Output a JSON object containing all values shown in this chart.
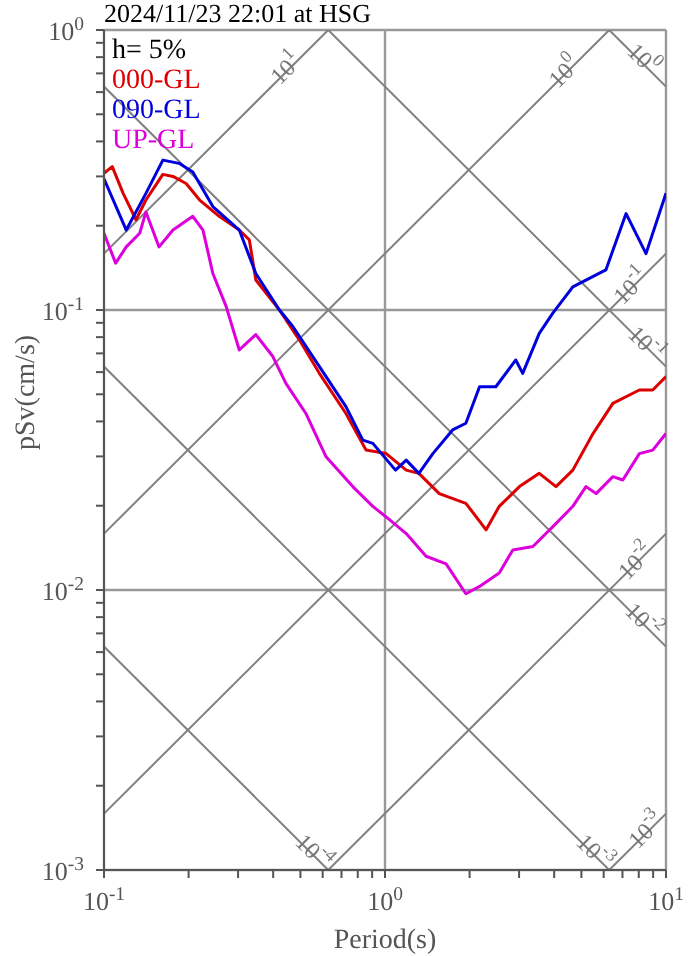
{
  "chart_data": {
    "type": "line",
    "title": "2024/11/23 22:01 at HSG",
    "xlabel": "Period(s)",
    "ylabel": "pSv(cm/s)",
    "log": "xy",
    "grid": true,
    "legend": "top left",
    "marker": "none",
    "line_style": "solid",
    "xlim": [
      0.1,
      10
    ],
    "ylim": [
      0.001,
      1
    ],
    "xticks": [
      {
        "value": 0.1,
        "label": "10$^{-1}$"
      },
      {
        "value": 0.2,
        "label": null
      },
      {
        "value": 0.3,
        "label": null
      },
      {
        "value": 0.4,
        "label": null
      },
      {
        "value": 0.5,
        "label": null
      },
      {
        "value": 0.6,
        "label": null
      },
      {
        "value": 0.7,
        "label": null
      },
      {
        "value": 0.8,
        "label": null
      },
      {
        "value": 0.9,
        "label": null
      },
      {
        "value": 1,
        "label": "10$^{0}$"
      },
      {
        "value": 2,
        "label": null
      },
      {
        "value": 3,
        "label": null
      },
      {
        "value": 4,
        "label": null
      },
      {
        "value": 5,
        "label": null
      },
      {
        "value": 6,
        "label": null
      },
      {
        "value": 7,
        "label": null
      },
      {
        "value": 8,
        "label": null
      },
      {
        "value": 9,
        "label": null
      },
      {
        "value": 10,
        "label": "10$^{1}$"
      }
    ],
    "yticks": [
      {
        "value": 0.001,
        "label": "10$^{-3}$"
      },
      {
        "value": 0.002,
        "label": null
      },
      {
        "value": 0.003,
        "label": null
      },
      {
        "value": 0.004,
        "label": null
      },
      {
        "value": 0.005,
        "label": null
      },
      {
        "value": 0.006,
        "label": null
      },
      {
        "value": 0.007,
        "label": null
      },
      {
        "value": 0.008,
        "label": null
      },
      {
        "value": 0.009,
        "label": null
      },
      {
        "value": 0.01,
        "label": "10$^{-2}$"
      },
      {
        "value": 0.02,
        "label": null
      },
      {
        "value": 0.03,
        "label": null
      },
      {
        "value": 0.04,
        "label": null
      },
      {
        "value": 0.05,
        "label": null
      },
      {
        "value": 0.06,
        "label": null
      },
      {
        "value": 0.07,
        "label": null
      },
      {
        "value": 0.08,
        "label": null
      },
      {
        "value": 0.09,
        "label": null
      },
      {
        "value": 0.1,
        "label": "10$^{-1}$"
      },
      {
        "value": 0.2,
        "label": null
      },
      {
        "value": 0.3,
        "label": null
      },
      {
        "value": 0.4,
        "label": null
      },
      {
        "value": 0.5,
        "label": null
      },
      {
        "value": 0.6,
        "label": null
      },
      {
        "value": 0.7,
        "label": null
      },
      {
        "value": 0.8,
        "label": null
      },
      {
        "value": 0.9,
        "label": null
      },
      {
        "value": 1,
        "label": "10$^{0}$"
      }
    ],
    "annotations": [
      "h= 5%",
      {
        "text": "10$^{1}$",
        "x": 0.45,
        "y": 0.72
      },
      {
        "text": "10$^{0}$",
        "x": 4.4,
        "y": 0.7
      },
      {
        "text": "10$^{0}$",
        "x": 8.2,
        "y": 0.78
      },
      {
        "text": "10$^{-1}$",
        "x": 7.6,
        "y": 0.12
      },
      {
        "text": "10$^{-1}$",
        "x": 8.4,
        "y": 0.075
      },
      {
        "text": "10$^{-2}$",
        "x": 7.9,
        "y": 0.0125
      },
      {
        "text": "10$^{-2}$",
        "x": 8.2,
        "y": 0.0077
      },
      {
        "text": "10$^{-3}$",
        "x": 8.6,
        "y": 0.00137
      },
      {
        "text": "10$^{-3}$",
        "x": 5.5,
        "y": 0.00115
      },
      {
        "text": "10$^{-4}$",
        "x": 0.55,
        "y": 0.00115
      }
    ],
    "series": [
      {
        "color": "#808080",
        "x": [
          0.1,
          0.628
        ],
        "values": [
          0.159,
          1
        ]
      },
      {
        "color": "#808080",
        "x": [
          0.1,
          6.28
        ],
        "values": [
          0.0159,
          1
        ]
      },
      {
        "color": "#808080",
        "x": [
          0.1,
          10
        ],
        "values": [
          0.00159,
          0.159
        ]
      },
      {
        "color": "#808080",
        "x": [
          0.628,
          10
        ],
        "values": [
          0.001,
          0.0159
        ]
      },
      {
        "color": "#808080",
        "x": [
          6.28,
          10
        ],
        "values": [
          0.001,
          0.00159
        ]
      },
      {
        "color": "#808080",
        "x": [
          6.28,
          10
        ],
        "values": [
          1,
          0.628
        ]
      },
      {
        "color": "#808080",
        "x": [
          0.628,
          10
        ],
        "values": [
          1,
          0.0628
        ]
      },
      {
        "color": "#808080",
        "x": [
          0.1,
          10
        ],
        "values": [
          0.628,
          0.00628
        ]
      },
      {
        "color": "#808080",
        "x": [
          0.1,
          6.28
        ],
        "values": [
          0.0628,
          0.001
        ]
      },
      {
        "color": "#808080",
        "x": [
          0.1,
          0.628
        ],
        "values": [
          0.00628,
          0.001
        ]
      },
      {
        "name": "000-GL",
        "color": "#dd0000",
        "x": [
          0.1,
          0.107,
          0.117,
          0.13,
          0.141,
          0.162,
          0.176,
          0.196,
          0.219,
          0.257,
          0.303,
          0.329,
          0.347,
          0.421,
          0.496,
          0.584,
          0.726,
          0.856,
          1.01,
          1.19,
          1.32,
          1.56,
          1.94,
          2.29,
          2.55,
          3.01,
          3.54,
          4.06,
          4.66,
          5.5,
          6.47,
          8.04,
          8.97,
          10
        ],
        "values": [
          0.308,
          0.325,
          0.261,
          0.21,
          0.247,
          0.305,
          0.3,
          0.283,
          0.247,
          0.216,
          0.193,
          0.178,
          0.128,
          0.1,
          0.0781,
          0.0594,
          0.0427,
          0.0316,
          0.0307,
          0.0268,
          0.0261,
          0.0221,
          0.0204,
          0.0164,
          0.0199,
          0.0234,
          0.0261,
          0.0234,
          0.0268,
          0.0362,
          0.0464,
          0.0518,
          0.0518,
          0.0578
        ]
      },
      {
        "name": "090-GL",
        "color": "#0000dd",
        "x": [
          0.1,
          0.12,
          0.141,
          0.162,
          0.185,
          0.207,
          0.244,
          0.303,
          0.347,
          0.421,
          0.47,
          0.617,
          0.726,
          0.834,
          0.905,
          1.09,
          1.19,
          1.32,
          1.48,
          1.74,
          1.94,
          2.17,
          2.48,
          2.92,
          3.09,
          3.54,
          3.95,
          4.66,
          6.11,
          7.21,
          8.49,
          10
        ],
        "values": [
          0.294,
          0.193,
          0.261,
          0.343,
          0.334,
          0.311,
          0.234,
          0.193,
          0.135,
          0.1,
          0.0873,
          0.0578,
          0.0452,
          0.0343,
          0.0334,
          0.0268,
          0.0291,
          0.0261,
          0.0307,
          0.0373,
          0.0394,
          0.0532,
          0.0532,
          0.0663,
          0.0594,
          0.0825,
          0.0972,
          0.121,
          0.139,
          0.221,
          0.159,
          0.261
        ]
      },
      {
        "name": "UP-GL",
        "color": "#dd00dd",
        "x": [
          0.1,
          0.11,
          0.12,
          0.134,
          0.141,
          0.157,
          0.176,
          0.207,
          0.225,
          0.244,
          0.272,
          0.303,
          0.347,
          0.399,
          0.444,
          0.523,
          0.617,
          0.768,
          0.905,
          1.04,
          1.19,
          1.4,
          1.65,
          1.94,
          2.17,
          2.55,
          2.85,
          3.36,
          3.95,
          4.66,
          5.19,
          5.64,
          6.47,
          7.02,
          8.04,
          8.97,
          10
        ],
        "values": [
          0.188,
          0.147,
          0.168,
          0.188,
          0.224,
          0.168,
          0.193,
          0.216,
          0.193,
          0.135,
          0.103,
          0.072,
          0.0817,
          0.0682,
          0.0547,
          0.0427,
          0.0299,
          0.0234,
          0.0199,
          0.0178,
          0.0159,
          0.0132,
          0.0124,
          0.0097,
          0.0103,
          0.0115,
          0.0139,
          0.0143,
          0.0168,
          0.0199,
          0.0234,
          0.0221,
          0.0254,
          0.0247,
          0.0307,
          0.0316,
          0.0362
        ]
      }
    ]
  }
}
